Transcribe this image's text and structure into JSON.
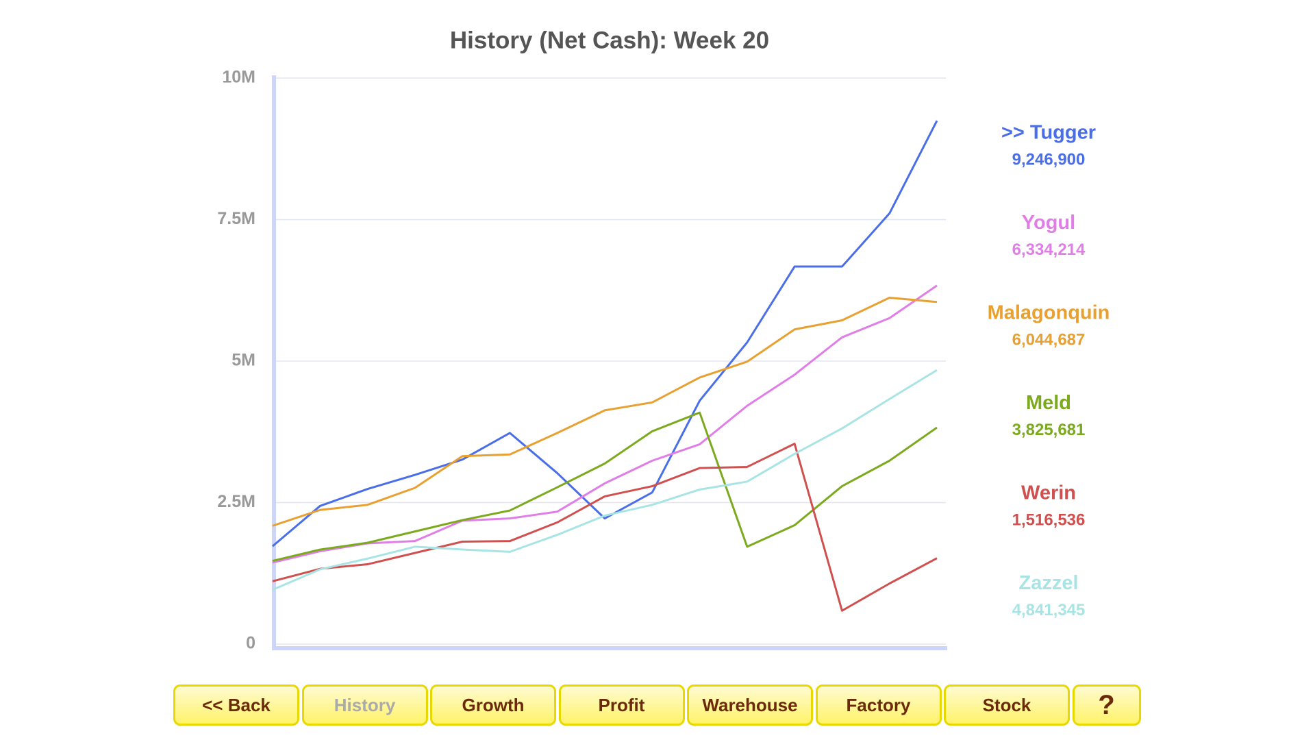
{
  "chart_data": {
    "type": "line",
    "title": "History (Net Cash): Week 20",
    "categories": [
      null,
      null,
      null,
      null,
      null,
      null,
      null,
      null,
      null,
      null,
      null,
      null,
      null,
      null,
      null
    ],
    "ylim": [
      0,
      10000000
    ],
    "yticks": [
      0,
      {
        "value": 2500000,
        "label": "2.5M"
      },
      {
        "value": 5000000,
        "label": "5M"
      },
      {
        "value": 7500000,
        "label": "7.5M"
      },
      {
        "value": 10000000,
        "label": "10M"
      }
    ],
    "grid": true,
    "series": [
      {
        "name": ">> Tugger",
        "color": "#4a6ee8",
        "values": [
          1730000,
          2440000,
          2740000,
          2990000,
          3260000,
          3730000,
          3020000,
          2220000,
          2680000,
          4300000,
          5330000,
          6670000,
          6670000,
          7610000,
          9246900
        ],
        "value_labels": [
          "9,246,900"
        ]
      },
      {
        "name": "Yogul",
        "color": "#e07ee8",
        "values": [
          1440000,
          1640000,
          1780000,
          1820000,
          2180000,
          2220000,
          2340000,
          2840000,
          3240000,
          3530000,
          4210000,
          4760000,
          5420000,
          5760000,
          6334214
        ],
        "value_labels": [
          "6,334,214"
        ]
      },
      {
        "name": "Malagonquin",
        "color": "#e8a030",
        "values": [
          2090000,
          2370000,
          2460000,
          2760000,
          3320000,
          3350000,
          3730000,
          4130000,
          4270000,
          4710000,
          4990000,
          5560000,
          5720000,
          6120000,
          6044687
        ],
        "value_labels": [
          "6,044,687"
        ]
      },
      {
        "name": "Meld",
        "color": "#7caa1e",
        "values": [
          1470000,
          1670000,
          1790000,
          1990000,
          2190000,
          2360000,
          2770000,
          3190000,
          3760000,
          4090000,
          1720000,
          2100000,
          2790000,
          3240000,
          3825681
        ],
        "value_labels": [
          "3,825,681"
        ]
      },
      {
        "name": "Werin",
        "color": "#d05050",
        "values": [
          1110000,
          1330000,
          1410000,
          1610000,
          1810000,
          1820000,
          2150000,
          2610000,
          2790000,
          3110000,
          3130000,
          3540000,
          590000,
          1070000,
          1516536
        ],
        "value_labels": [
          "1,516,536"
        ]
      },
      {
        "name": "Zazzel",
        "color": "#a8e4e4",
        "values": [
          960000,
          1320000,
          1510000,
          1720000,
          1670000,
          1630000,
          1930000,
          2270000,
          2460000,
          2730000,
          2870000,
          3360000,
          3810000,
          4330000,
          4841345
        ],
        "value_labels": [
          "4,841,345"
        ]
      }
    ]
  },
  "buttons": [
    "<< Back",
    "History",
    "Growth",
    "Profit",
    "Warehouse",
    "Factory",
    "Stock",
    "?"
  ]
}
